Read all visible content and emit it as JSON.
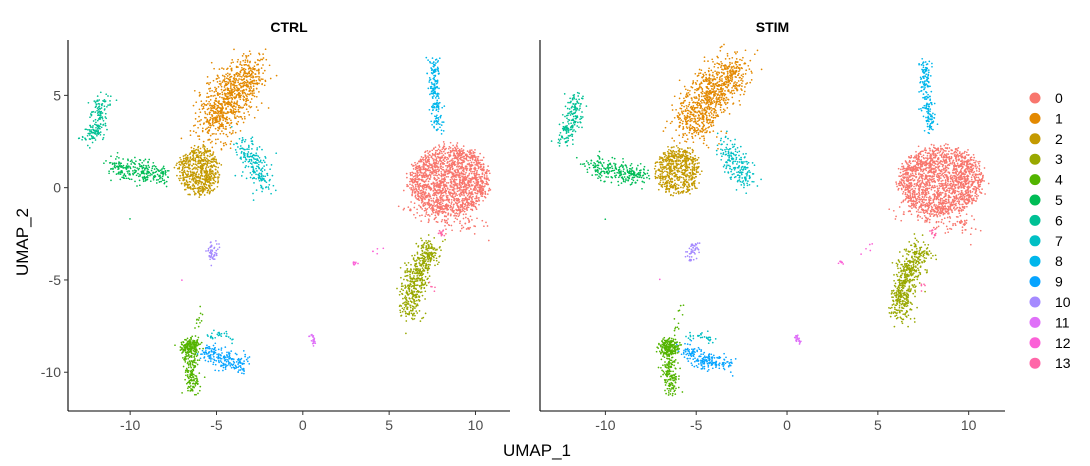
{
  "chart_data": {
    "type": "scatter",
    "xlabel": "UMAP_1",
    "ylabel": "UMAP_2",
    "xlim": [
      -13.6,
      12.0
    ],
    "ylim": [
      -12.1,
      8.0
    ],
    "xticks": [
      -10,
      -5,
      0,
      5,
      10
    ],
    "yticks": [
      5,
      0,
      -5,
      -10
    ],
    "grid": false,
    "legend_position": "right",
    "panels": [
      {
        "title": "CTRL",
        "seed": 7
      },
      {
        "title": "STIM",
        "seed": 23
      }
    ],
    "clusters": [
      {
        "label": "0",
        "color": "#F8766D",
        "parts": [
          {
            "type": "blob",
            "cx": 8.5,
            "cy": 0.4,
            "rx": 2.0,
            "ry": 1.6,
            "n": 1700
          },
          {
            "type": "seg",
            "pts": [
              [
                6,
                -1
              ],
              [
                10.3,
                -2.2
              ]
            ],
            "s": 0.3,
            "n": 120
          }
        ]
      },
      {
        "label": "1",
        "color": "#E38900",
        "parts": [
          {
            "type": "seg",
            "pts": [
              [
                -5.4,
                3.2
              ],
              [
                -4.2,
                5
              ],
              [
                -2.9,
                6.5
              ]
            ],
            "s": 0.6,
            "n": 900
          }
        ]
      },
      {
        "label": "2",
        "color": "#C49A00",
        "parts": [
          {
            "type": "blob",
            "cx": -6,
            "cy": 0.9,
            "rx": 1.0,
            "ry": 1.1,
            "n": 600
          }
        ]
      },
      {
        "label": "3",
        "color": "#99A800",
        "parts": [
          {
            "type": "seg",
            "pts": [
              [
                7.5,
                -3.2
              ],
              [
                6.5,
                -4.8
              ],
              [
                6.2,
                -6.9
              ]
            ],
            "s": 0.35,
            "n": 520
          }
        ]
      },
      {
        "label": "4",
        "color": "#53B400",
        "parts": [
          {
            "type": "blob",
            "cx": -6.5,
            "cy": -8.6,
            "rx": 0.45,
            "ry": 0.35,
            "n": 180
          },
          {
            "type": "seg",
            "pts": [
              [
                -6.6,
                -8.8
              ],
              [
                -6.3,
                -11
              ]
            ],
            "s": 0.22,
            "n": 170
          },
          {
            "type": "seg",
            "pts": [
              [
                -5.7,
                -6.2
              ],
              [
                -6.2,
                -7.8
              ]
            ],
            "s": 0.1,
            "n": 12
          }
        ]
      },
      {
        "label": "5",
        "color": "#00BC56",
        "parts": [
          {
            "type": "seg",
            "pts": [
              [
                -11,
                1.2
              ],
              [
                -9.5,
                0.9
              ],
              [
                -7.9,
                0.6
              ]
            ],
            "s": 0.3,
            "n": 260
          },
          {
            "type": "seg",
            "pts": [
              [
                -10,
                -1.7
              ],
              [
                -10,
                -1.7
              ]
            ],
            "s": 0.02,
            "n": 1
          }
        ]
      },
      {
        "label": "6",
        "color": "#00C094",
        "parts": [
          {
            "type": "seg",
            "pts": [
              [
                -12.4,
                2.5
              ],
              [
                -11.8,
                3.5
              ],
              [
                -11.6,
                4.9
              ]
            ],
            "s": 0.25,
            "n": 180
          }
        ]
      },
      {
        "label": "7",
        "color": "#00BFC4",
        "parts": [
          {
            "type": "seg",
            "pts": [
              [
                -3.5,
                2.4
              ],
              [
                -2.8,
                1.3
              ],
              [
                -2.2,
                0.3
              ]
            ],
            "s": 0.35,
            "n": 200
          },
          {
            "type": "seg",
            "pts": [
              [
                -5.5,
                -8.1
              ],
              [
                -4.6,
                -7.9
              ],
              [
                -4.0,
                -8.4
              ]
            ],
            "s": 0.1,
            "n": 30
          }
        ]
      },
      {
        "label": "8",
        "color": "#00B6EB",
        "parts": [
          {
            "type": "seg",
            "pts": [
              [
                7.6,
                6.9
              ],
              [
                7.6,
                5.2
              ],
              [
                7.9,
                3.1
              ]
            ],
            "s": 0.17,
            "n": 190
          }
        ]
      },
      {
        "label": "9",
        "color": "#06A4FF",
        "parts": [
          {
            "type": "seg",
            "pts": [
              [
                -5.6,
                -8.8
              ],
              [
                -4.5,
                -9.4
              ],
              [
                -3.3,
                -9.5
              ]
            ],
            "s": 0.25,
            "n": 200
          }
        ]
      },
      {
        "label": "10",
        "color": "#A58AFF",
        "parts": [
          {
            "type": "seg",
            "pts": [
              [
                -5.1,
                -3
              ],
              [
                -5.3,
                -3.9
              ]
            ],
            "s": 0.15,
            "n": 50
          }
        ]
      },
      {
        "label": "11",
        "color": "#DF70F8",
        "parts": [
          {
            "type": "seg",
            "pts": [
              [
                0.5,
                -8
              ],
              [
                0.7,
                -8.4
              ]
            ],
            "s": 0.07,
            "n": 25
          }
        ]
      },
      {
        "label": "12",
        "color": "#FB61D7",
        "parts": [
          {
            "type": "seg",
            "pts": [
              [
                2.9,
                -4.1
              ],
              [
                3,
                -4.1
              ]
            ],
            "s": 0.08,
            "n": 8
          },
          {
            "type": "seg",
            "pts": [
              [
                4.1,
                -3.5
              ],
              [
                4.7,
                -3
              ]
            ],
            "s": 0.08,
            "n": 5
          },
          {
            "type": "seg",
            "pts": [
              [
                -7,
                -5
              ],
              [
                -7,
                -5
              ]
            ],
            "s": 0.02,
            "n": 1
          }
        ]
      },
      {
        "label": "13",
        "color": "#FF66A8",
        "parts": [
          {
            "type": "seg",
            "pts": [
              [
                8,
                -2.3
              ],
              [
                8.1,
                -2.6
              ]
            ],
            "s": 0.08,
            "n": 14
          },
          {
            "type": "seg",
            "pts": [
              [
                7.4,
                -5.2
              ],
              [
                7.6,
                -5.6
              ]
            ],
            "s": 0.1,
            "n": 5
          }
        ]
      }
    ]
  }
}
